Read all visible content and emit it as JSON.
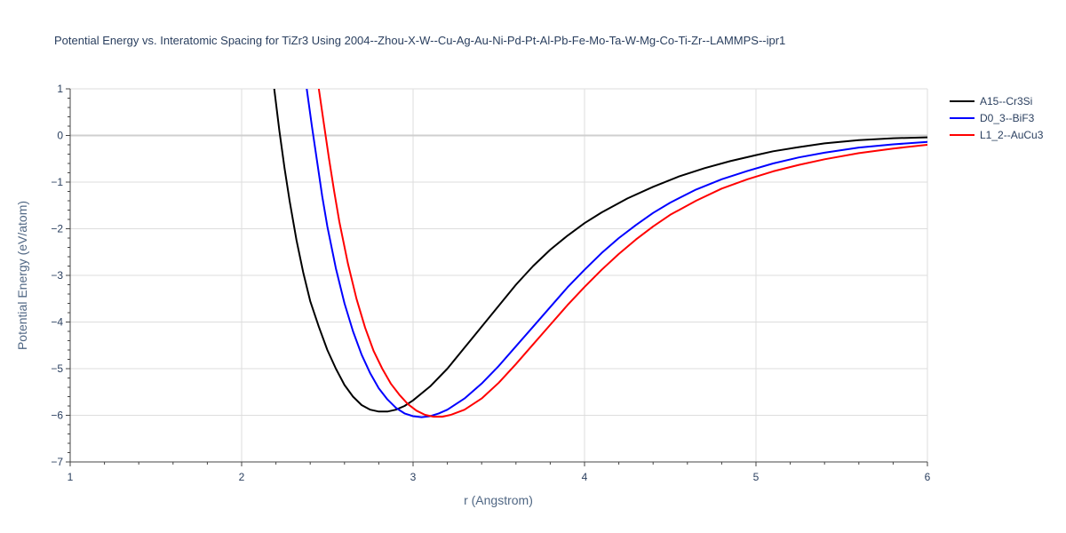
{
  "chart_data": {
    "type": "line",
    "title": "Potential Energy vs. Interatomic Spacing for TiZr3 Using 2004--Zhou-X-W--Cu-Ag-Au-Ni-Pd-Pt-Al-Pb-Fe-Mo-Ta-W-Mg-Co-Ti-Zr--LAMMPS--ipr1",
    "xlabel": "r (Angstrom)",
    "ylabel": "Potential Energy (eV/atom)",
    "xlim": [
      1,
      6
    ],
    "ylim": [
      -7,
      1
    ],
    "xticks": [
      1,
      2,
      3,
      4,
      5,
      6
    ],
    "yticks": [
      1,
      0,
      -1,
      -2,
      -3,
      -4,
      -5,
      -6,
      -7
    ],
    "ytick_labels": [
      "1",
      "0",
      "−1",
      "−2",
      "−3",
      "−4",
      "−5",
      "−6",
      "−7"
    ],
    "grid": true,
    "legend_position": "top-right outside",
    "series": [
      {
        "name": "A15--Cr3Si",
        "color": "#000000",
        "x": [
          2.19,
          2.22,
          2.25,
          2.28,
          2.32,
          2.36,
          2.4,
          2.45,
          2.5,
          2.55,
          2.6,
          2.65,
          2.7,
          2.75,
          2.8,
          2.85,
          2.9,
          2.95,
          3.0,
          3.1,
          3.2,
          3.3,
          3.4,
          3.5,
          3.6,
          3.7,
          3.8,
          3.9,
          4.0,
          4.1,
          4.25,
          4.4,
          4.55,
          4.7,
          4.85,
          5.0,
          5.1,
          5.25,
          5.4,
          5.6,
          5.8,
          6.0
        ],
        "y": [
          1.0,
          0.1,
          -0.7,
          -1.4,
          -2.25,
          -2.95,
          -3.55,
          -4.1,
          -4.6,
          -5.0,
          -5.35,
          -5.6,
          -5.78,
          -5.88,
          -5.92,
          -5.92,
          -5.88,
          -5.8,
          -5.68,
          -5.38,
          -5.0,
          -4.55,
          -4.1,
          -3.65,
          -3.2,
          -2.8,
          -2.45,
          -2.15,
          -1.88,
          -1.65,
          -1.35,
          -1.1,
          -0.88,
          -0.7,
          -0.55,
          -0.42,
          -0.34,
          -0.25,
          -0.17,
          -0.1,
          -0.06,
          -0.04
        ]
      },
      {
        "name": "D0_3--BiF3",
        "color": "#0000ff",
        "x": [
          2.38,
          2.41,
          2.44,
          2.47,
          2.5,
          2.55,
          2.6,
          2.65,
          2.7,
          2.75,
          2.8,
          2.85,
          2.9,
          2.95,
          3.0,
          3.05,
          3.1,
          3.15,
          3.2,
          3.3,
          3.4,
          3.5,
          3.6,
          3.7,
          3.8,
          3.9,
          4.0,
          4.1,
          4.2,
          4.3,
          4.4,
          4.5,
          4.65,
          4.8,
          4.95,
          5.1,
          5.25,
          5.4,
          5.6,
          5.8,
          6.0
        ],
        "y": [
          1.0,
          0.2,
          -0.55,
          -1.3,
          -1.95,
          -2.85,
          -3.6,
          -4.2,
          -4.7,
          -5.1,
          -5.42,
          -5.66,
          -5.84,
          -5.96,
          -6.02,
          -6.04,
          -6.02,
          -5.96,
          -5.88,
          -5.64,
          -5.32,
          -4.94,
          -4.52,
          -4.1,
          -3.68,
          -3.26,
          -2.88,
          -2.52,
          -2.2,
          -1.92,
          -1.66,
          -1.44,
          -1.16,
          -0.94,
          -0.76,
          -0.6,
          -0.47,
          -0.37,
          -0.26,
          -0.19,
          -0.14
        ]
      },
      {
        "name": "L1_2--AuCu3",
        "color": "#ff0000",
        "x": [
          2.45,
          2.48,
          2.51,
          2.54,
          2.57,
          2.62,
          2.67,
          2.72,
          2.77,
          2.82,
          2.87,
          2.92,
          2.97,
          3.02,
          3.07,
          3.12,
          3.17,
          3.22,
          3.3,
          3.4,
          3.5,
          3.6,
          3.7,
          3.8,
          3.9,
          4.0,
          4.1,
          4.2,
          4.3,
          4.4,
          4.5,
          4.65,
          4.8,
          4.95,
          5.1,
          5.25,
          5.4,
          5.6,
          5.8,
          6.0
        ],
        "y": [
          1.0,
          0.25,
          -0.5,
          -1.2,
          -1.85,
          -2.75,
          -3.5,
          -4.12,
          -4.62,
          -5.0,
          -5.32,
          -5.56,
          -5.76,
          -5.9,
          -5.99,
          -6.03,
          -6.03,
          -5.99,
          -5.88,
          -5.64,
          -5.3,
          -4.9,
          -4.48,
          -4.06,
          -3.64,
          -3.25,
          -2.88,
          -2.54,
          -2.23,
          -1.95,
          -1.7,
          -1.4,
          -1.14,
          -0.94,
          -0.77,
          -0.63,
          -0.51,
          -0.38,
          -0.28,
          -0.2
        ]
      }
    ]
  }
}
